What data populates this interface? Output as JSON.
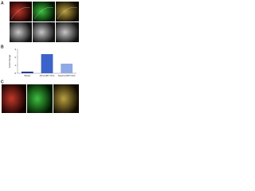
{
  "panels": {
    "a": {
      "label": "A"
    },
    "b": {
      "label": "B"
    },
    "c": {
      "label": "C"
    }
  },
  "chart_data": {
    "type": "bar",
    "y_label": "Fold change",
    "categories": [
      "Sham",
      "AP+GFP OCs",
      "Sox2+GFP OCs"
    ],
    "values": [
      0.2,
      2.4,
      1.2
    ],
    "colors": [
      "#1f3f8f",
      "#3c63c9",
      "#8fa9e6"
    ],
    "ylim": [
      0,
      3
    ],
    "yticks": [
      0,
      1,
      2,
      3
    ],
    "grid": false
  }
}
